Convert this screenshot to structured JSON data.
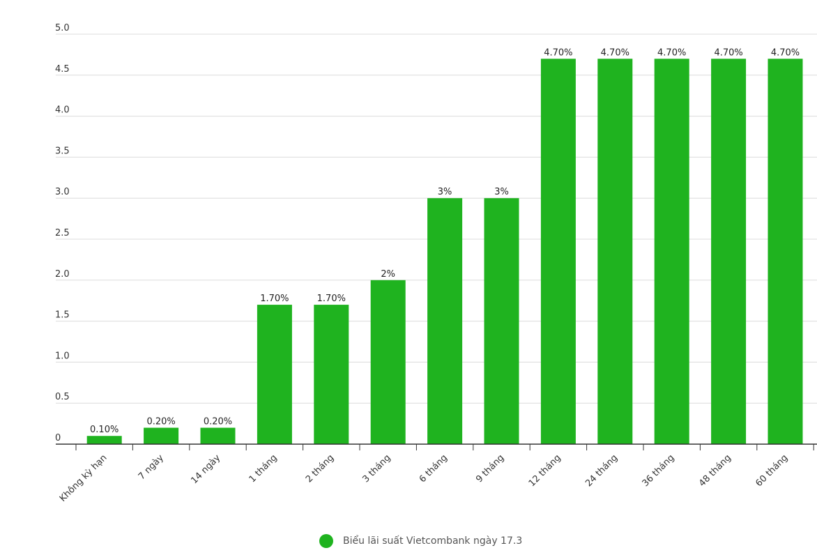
{
  "chart_data": {
    "type": "bar",
    "categories": [
      "Không kỳ hạn",
      "7 ngày",
      "14 ngày",
      "1 tháng",
      "2 tháng",
      "3 tháng",
      "6 tháng",
      "9 tháng",
      "12 tháng",
      "24 tháng",
      "36 tháng",
      "48 tháng",
      "60 tháng"
    ],
    "values": [
      0.1,
      0.2,
      0.2,
      1.7,
      1.7,
      2,
      3,
      3,
      4.7,
      4.7,
      4.7,
      4.7,
      4.7
    ],
    "data_labels": [
      "0.10%",
      "0.20%",
      "0.20%",
      "1.70%",
      "1.70%",
      "2%",
      "3%",
      "3%",
      "4.70%",
      "4.70%",
      "4.70%",
      "4.70%",
      "4.70%"
    ],
    "y_ticks": [
      "0",
      "0.5",
      "1.0",
      "1.5",
      "2.0",
      "2.5",
      "3.0",
      "3.5",
      "4.0",
      "4.5",
      "5.0"
    ],
    "ylim": [
      0,
      5
    ],
    "grid": true,
    "legend_position": "bottom",
    "series": [
      {
        "name": "Biểu lãi suất Vietcombank ngày 17.3",
        "color": "#1fb31f"
      }
    ]
  }
}
